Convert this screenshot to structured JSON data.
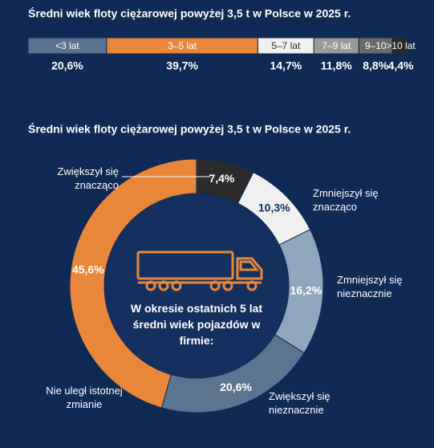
{
  "chart_data": [
    {
      "type": "stacked-bar",
      "title": "Średni wiek floty ciężarowej powyżej 3,5 t w Polsce w 2025 r.",
      "categories": [
        "<3 lat",
        "3–5 lat",
        "5–7 lat",
        "7–9 lat",
        "9–10",
        ">10 lat"
      ],
      "values": [
        20.6,
        39.7,
        14.7,
        11.8,
        8.8,
        4.4
      ],
      "value_labels": [
        "20,6%",
        "39,7%",
        "14,7%",
        "11,8%",
        "8,8%",
        "4,4%"
      ],
      "colors": [
        "#5b7291",
        "#e8873a",
        "#f0f0f0",
        "#9a9a9a",
        "#6a6a6a",
        "#2a2a2a"
      ]
    },
    {
      "type": "donut",
      "title": "Średni wiek floty ciężarowej powyżej 3,5 t w Polsce w 2025 r.",
      "center_text": "W okresie ostatnich 5 lat średni wiek pojazdów w firmie:",
      "categories": [
        "Zwiększył się znacząco",
        "Zmniejszył się znacząco",
        "Zmniejszył się nieznacznie",
        "Zwiększył się nieznacznie",
        "Nie uległ istotnej zmianie"
      ],
      "values": [
        7.4,
        10.3,
        16.2,
        20.6,
        45.6
      ],
      "value_labels": [
        "7,4%",
        "10,3%",
        "16,2%",
        "20,6%",
        "45,6%"
      ],
      "colors": [
        "#2b2b2b",
        "#f0f0f0",
        "#8fa7bd",
        "#5b7590",
        "#e8873a"
      ]
    }
  ]
}
